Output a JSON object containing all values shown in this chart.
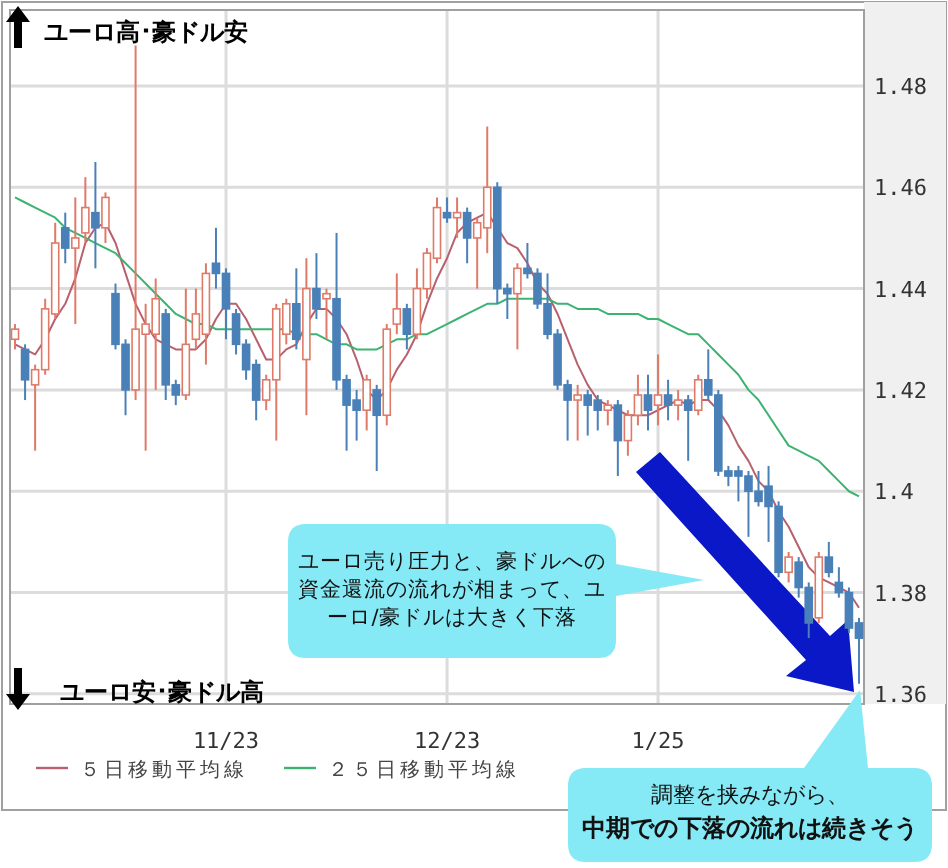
{
  "chart_data": {
    "type": "candlestick",
    "categories": [
      null,
      null,
      null,
      null,
      null,
      null,
      null,
      null,
      null,
      null,
      null,
      null,
      null,
      null,
      null,
      null,
      null,
      null,
      null,
      null,
      null,
      "11/23",
      null,
      null,
      null,
      null,
      null,
      null,
      null,
      null,
      null,
      null,
      null,
      null,
      null,
      null,
      null,
      null,
      null,
      null,
      null,
      null,
      null,
      "12/23",
      null,
      null,
      null,
      null,
      null,
      null,
      null,
      null,
      null,
      null,
      null,
      null,
      null,
      null,
      null,
      null,
      null,
      null,
      null,
      null,
      "1/25",
      null,
      null,
      null,
      null,
      null,
      null,
      null,
      null,
      null,
      null,
      null,
      null,
      null,
      null,
      null,
      null,
      null,
      null,
      null,
      null
    ],
    "ohlc": [
      [
        1.43,
        1.433,
        1.428,
        1.432
      ],
      [
        1.428,
        1.429,
        1.418,
        1.422
      ],
      [
        1.421,
        1.425,
        1.408,
        1.424
      ],
      [
        1.424,
        1.438,
        1.423,
        1.436
      ],
      [
        1.435,
        1.453,
        1.434,
        1.449
      ],
      [
        1.452,
        1.455,
        1.445,
        1.448
      ],
      [
        1.448,
        1.458,
        1.433,
        1.45
      ],
      [
        1.451,
        1.462,
        1.449,
        1.456
      ],
      [
        1.455,
        1.465,
        1.444,
        1.452
      ],
      [
        1.452,
        1.459,
        1.449,
        1.458
      ],
      [
        1.439,
        1.441,
        1.428,
        1.429
      ],
      [
        1.429,
        1.43,
        1.415,
        1.42
      ],
      [
        1.42,
        1.488,
        1.418,
        1.432
      ],
      [
        1.431,
        1.437,
        1.408,
        1.433
      ],
      [
        1.431,
        1.442,
        1.42,
        1.438
      ],
      [
        1.435,
        1.436,
        1.418,
        1.421
      ],
      [
        1.421,
        1.422,
        1.417,
        1.419
      ],
      [
        1.419,
        1.44,
        1.418,
        1.429
      ],
      [
        1.43,
        1.44,
        1.428,
        1.435
      ],
      [
        1.431,
        1.445,
        1.425,
        1.443
      ],
      [
        1.445,
        1.452,
        1.44,
        1.443
      ],
      [
        1.443,
        1.444,
        1.43,
        1.436
      ],
      [
        1.435,
        1.436,
        1.427,
        1.429
      ],
      [
        1.429,
        1.43,
        1.422,
        1.424
      ],
      [
        1.425,
        1.426,
        1.414,
        1.418
      ],
      [
        1.418,
        1.423,
        1.416,
        1.422
      ],
      [
        1.422,
        1.437,
        1.41,
        1.436
      ],
      [
        1.431,
        1.438,
        1.429,
        1.437
      ],
      [
        1.437,
        1.444,
        1.428,
        1.43
      ],
      [
        1.426,
        1.446,
        1.415,
        1.44
      ],
      [
        1.44,
        1.447,
        1.434,
        1.436
      ],
      [
        1.438,
        1.44,
        1.43,
        1.439
      ],
      [
        1.438,
        1.451,
        1.42,
        1.422
      ],
      [
        1.422,
        1.423,
        1.408,
        1.417
      ],
      [
        1.418,
        1.42,
        1.41,
        1.416
      ],
      [
        1.416,
        1.423,
        1.412,
        1.422
      ],
      [
        1.42,
        1.421,
        1.404,
        1.415
      ],
      [
        1.415,
        1.433,
        1.413,
        1.432
      ],
      [
        1.433,
        1.443,
        1.431,
        1.436
      ],
      [
        1.436,
        1.437,
        1.428,
        1.431
      ],
      [
        1.431,
        1.444,
        1.43,
        1.44
      ],
      [
        1.44,
        1.448,
        1.438,
        1.447
      ],
      [
        1.446,
        1.458,
        1.445,
        1.456
      ],
      [
        1.455,
        1.458,
        1.453,
        1.454
      ],
      [
        1.454,
        1.458,
        1.45,
        1.455
      ],
      [
        1.455,
        1.456,
        1.445,
        1.45
      ],
      [
        1.45,
        1.454,
        1.44,
        1.453
      ],
      [
        1.452,
        1.472,
        1.447,
        1.46
      ],
      [
        1.46,
        1.461,
        1.437,
        1.44
      ],
      [
        1.44,
        1.441,
        1.434,
        1.439
      ],
      [
        1.439,
        1.445,
        1.428,
        1.444
      ],
      [
        1.444,
        1.449,
        1.442,
        1.443
      ],
      [
        1.443,
        1.444,
        1.436,
        1.437
      ],
      [
        1.437,
        1.443,
        1.43,
        1.431
      ],
      [
        1.431,
        1.432,
        1.42,
        1.421
      ],
      [
        1.421,
        1.422,
        1.41,
        1.418
      ],
      [
        1.418,
        1.421,
        1.41,
        1.419
      ],
      [
        1.419,
        1.42,
        1.411,
        1.417
      ],
      [
        1.418,
        1.419,
        1.412,
        1.416
      ],
      [
        1.416,
        1.418,
        1.413,
        1.417
      ],
      [
        1.417,
        1.418,
        1.403,
        1.41
      ],
      [
        1.41,
        1.416,
        1.407,
        1.415
      ],
      [
        1.415,
        1.423,
        1.413,
        1.419
      ],
      [
        1.419,
        1.423,
        1.412,
        1.416
      ],
      [
        1.417,
        1.427,
        1.413,
        1.419
      ],
      [
        1.419,
        1.422,
        1.414,
        1.417
      ],
      [
        1.417,
        1.42,
        1.414,
        1.418
      ],
      [
        1.418,
        1.419,
        1.406,
        1.416
      ],
      [
        1.416,
        1.423,
        1.415,
        1.422
      ],
      [
        1.422,
        1.428,
        1.418,
        1.419
      ],
      [
        1.419,
        1.42,
        1.403,
        1.404
      ],
      [
        1.404,
        1.405,
        1.401,
        1.403
      ],
      [
        1.404,
        1.405,
        1.398,
        1.403
      ],
      [
        1.403,
        1.404,
        1.391,
        1.4
      ],
      [
        1.4,
        1.404,
        1.397,
        1.398
      ],
      [
        1.401,
        1.405,
        1.39,
        1.397
      ],
      [
        1.397,
        1.398,
        1.383,
        1.384
      ],
      [
        1.384,
        1.388,
        1.382,
        1.387
      ],
      [
        1.386,
        1.387,
        1.379,
        1.381
      ],
      [
        1.381,
        1.382,
        1.371,
        1.374
      ],
      [
        1.375,
        1.388,
        1.374,
        1.387
      ],
      [
        1.387,
        1.39,
        1.383,
        1.384
      ],
      [
        1.382,
        1.385,
        1.379,
        1.38
      ],
      [
        1.38,
        1.381,
        1.372,
        1.373
      ],
      [
        1.374,
        1.375,
        1.362,
        1.371
      ]
    ],
    "series": [
      {
        "type": "line",
        "name": "５日移動平均線",
        "color": "#b8606e",
        "values": [
          1.429,
          1.428,
          1.427,
          1.43,
          1.434,
          1.437,
          1.442,
          1.449,
          1.452,
          1.453,
          1.449,
          1.443,
          1.437,
          1.433,
          1.43,
          1.429,
          1.428,
          1.428,
          1.428,
          1.43,
          1.434,
          1.437,
          1.437,
          1.434,
          1.43,
          1.426,
          1.426,
          1.428,
          1.429,
          1.433,
          1.436,
          1.436,
          1.434,
          1.431,
          1.426,
          1.42,
          1.418,
          1.42,
          1.424,
          1.427,
          1.431,
          1.437,
          1.442,
          1.446,
          1.451,
          1.453,
          1.454,
          1.455,
          1.452,
          1.449,
          1.448,
          1.445,
          1.441,
          1.439,
          1.435,
          1.43,
          1.425,
          1.421,
          1.418,
          1.417,
          1.416,
          1.415,
          1.415,
          1.415,
          1.416,
          1.417,
          1.418,
          1.417,
          1.418,
          1.418,
          1.416,
          1.413,
          1.409,
          1.406,
          1.402,
          1.4,
          1.396,
          1.393,
          1.389,
          1.385,
          1.383,
          1.382,
          1.381,
          1.38,
          1.377
        ]
      },
      {
        "type": "line",
        "name": "２５日移動平均線",
        "color": "#3cb371",
        "values": [
          1.458,
          1.457,
          1.456,
          1.455,
          1.454,
          1.452,
          1.451,
          1.45,
          1.449,
          1.448,
          1.447,
          1.445,
          1.443,
          1.441,
          1.439,
          1.437,
          1.435,
          1.434,
          1.433,
          1.433,
          1.432,
          1.432,
          1.432,
          1.432,
          1.432,
          1.432,
          1.432,
          1.432,
          1.431,
          1.431,
          1.431,
          1.43,
          1.429,
          1.429,
          1.428,
          1.428,
          1.428,
          1.429,
          1.43,
          1.43,
          1.431,
          1.431,
          1.432,
          1.433,
          1.434,
          1.435,
          1.436,
          1.437,
          1.437,
          1.438,
          1.438,
          1.438,
          1.438,
          1.438,
          1.437,
          1.437,
          1.436,
          1.436,
          1.436,
          1.435,
          1.435,
          1.435,
          1.435,
          1.434,
          1.434,
          1.433,
          1.432,
          1.431,
          1.431,
          1.429,
          1.427,
          1.425,
          1.423,
          1.42,
          1.418,
          1.415,
          1.412,
          1.409,
          1.408,
          1.407,
          1.406,
          1.404,
          1.402,
          1.4,
          1.399
        ]
      }
    ],
    "ylim": [
      1.358,
      1.495
    ],
    "yticks": [
      1.36,
      1.38,
      1.4,
      1.42,
      1.44,
      1.46,
      1.48
    ],
    "grid": true,
    "legend": "bottom",
    "annotations": [
      "ユーロ高･豪ドル安",
      "ユーロ安･豪ドル高",
      "ユーロ売り圧力と、豪ドルへの資金還流の流れが相まって、ユーロ/豪ドルは大きく下落",
      "調整を挟みながら、",
      "中期での下落の流れは続きそう"
    ]
  }
}
